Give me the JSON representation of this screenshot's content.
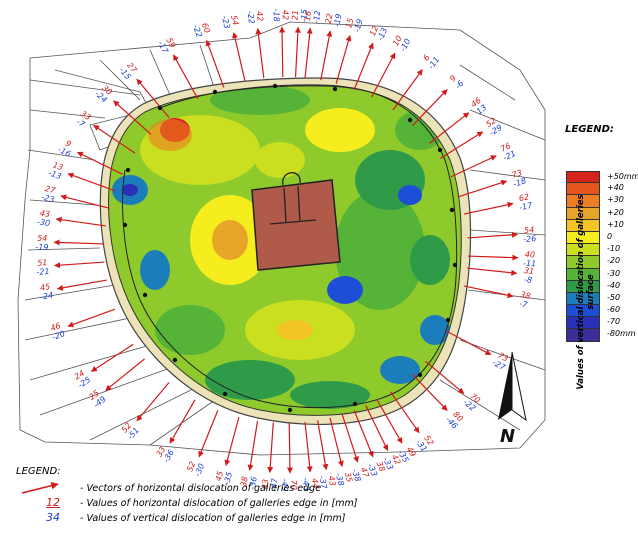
{
  "legend": {
    "title": "LEGEND:",
    "scale_labels": [
      "+50mm",
      "+40",
      "+30",
      "+20",
      "+10",
      "0",
      "-10",
      "-20",
      "-30",
      "-40",
      "-50",
      "-60",
      "-70",
      "-80mm"
    ],
    "scale_colors": [
      "#d7241b",
      "#e4551d",
      "#ec7d22",
      "#e6a429",
      "#f2c426",
      "#f5ed1d",
      "#c9df1f",
      "#8fca2c",
      "#55b437",
      "#2f9b48",
      "#1b7ebb",
      "#1d4fd6",
      "#2a30b8",
      "#3a2f9a"
    ],
    "vertical_label": "Values of vertical dislocation of galleries surface"
  },
  "bottom_legend": {
    "title": "LEGEND:",
    "sample_red": "12",
    "sample_blue": "34",
    "items": [
      "- Vectors of horizontal dislocation of galleries edge",
      "- Values of horizontal dislocation of galleries edge in [mm]",
      "- Values of vertical dislocation of galleries edge in [mm]"
    ]
  },
  "north_label": "N",
  "points": [
    {
      "h": "16",
      "v": "-12",
      "ang": -84
    },
    {
      "h": "21",
      "v": "-15",
      "ang": -87
    },
    {
      "h": "42",
      "v": "-18",
      "ang": -91
    },
    {
      "h": "42",
      "v": "-22",
      "ang": -97
    },
    {
      "h": "54",
      "v": "-23",
      "ang": -103
    },
    {
      "h": "60",
      "v": "-22",
      "ang": -110
    },
    {
      "h": "59",
      "v": "-17",
      "ang": -119
    },
    {
      "h": "27",
      "v": "-15",
      "ang": -130
    },
    {
      "h": "30",
      "v": "-24",
      "ang": -138
    },
    {
      "h": "33",
      "v": "-7",
      "ang": -146
    },
    {
      "h": "9",
      "v": "-16",
      "ang": -154
    },
    {
      "h": "13",
      "v": "-13",
      "ang": -160
    },
    {
      "h": "27",
      "v": "-23",
      "ang": -166
    },
    {
      "h": "43",
      "v": "-30",
      "ang": -172
    },
    {
      "h": "54",
      "v": "-19",
      "ang": -178
    },
    {
      "h": "51",
      "v": "-21",
      "ang": 176
    },
    {
      "h": "45",
      "v": "-24",
      "ang": 170
    },
    {
      "h": "46",
      "v": "-20",
      "ang": 160
    },
    {
      "h": "24",
      "v": "-25",
      "ang": 147
    },
    {
      "h": "25",
      "v": "-49",
      "ang": 141
    },
    {
      "h": "52",
      "v": "-51",
      "ang": 130
    },
    {
      "h": "33",
      "v": "-36",
      "ang": 120
    },
    {
      "h": "52",
      "v": "-30",
      "ang": 112
    },
    {
      "h": "45",
      "v": "-35",
      "ang": 105
    },
    {
      "h": "38",
      "v": "-36",
      "ang": 99
    },
    {
      "h": "43",
      "v": "-47",
      "ang": 94
    },
    {
      "h": "70",
      "v": "-49",
      "ang": 89
    },
    {
      "h": "44",
      "v": "-43",
      "ang": 84
    },
    {
      "h": "43",
      "v": "-37",
      "ang": 80
    },
    {
      "h": "35",
      "v": "-38",
      "ang": 76
    },
    {
      "h": "47",
      "v": "-38",
      "ang": 72
    },
    {
      "h": "38",
      "v": "-33",
      "ang": 68
    },
    {
      "h": "42",
      "v": "-33",
      "ang": 64
    },
    {
      "h": "49",
      "v": "-35",
      "ang": 60
    },
    {
      "h": "52",
      "v": "-31",
      "ang": 55
    },
    {
      "h": "80",
      "v": "-46",
      "ang": 46
    },
    {
      "h": "70",
      "v": "-22",
      "ang": 40
    },
    {
      "h": "73",
      "v": "-27",
      "ang": 28
    },
    {
      "h": "38",
      "v": "-7",
      "ang": 12
    },
    {
      "h": "31",
      "v": "-8",
      "ang": 6
    },
    {
      "h": "40",
      "v": "-11",
      "ang": 2
    },
    {
      "h": "54",
      "v": "-26",
      "ang": -4
    },
    {
      "h": "62",
      "v": "-17",
      "ang": -12
    },
    {
      "h": "73",
      "v": "-18",
      "ang": -18
    },
    {
      "h": "76",
      "v": "-21",
      "ang": -25
    },
    {
      "h": "52",
      "v": "-29",
      "ang": -32
    },
    {
      "h": "46",
      "v": "13",
      "ang": -38
    },
    {
      "h": "9",
      "v": "-6",
      "ang": -46
    },
    {
      "h": "6",
      "v": "-11",
      "ang": -54
    },
    {
      "h": "10",
      "v": "-10",
      "ang": -62
    },
    {
      "h": "12",
      "v": "-13",
      "ang": -68
    },
    {
      "h": "15",
      "v": "-19",
      "ang": -74
    },
    {
      "h": "22",
      "v": "-19",
      "ang": -79
    }
  ]
}
